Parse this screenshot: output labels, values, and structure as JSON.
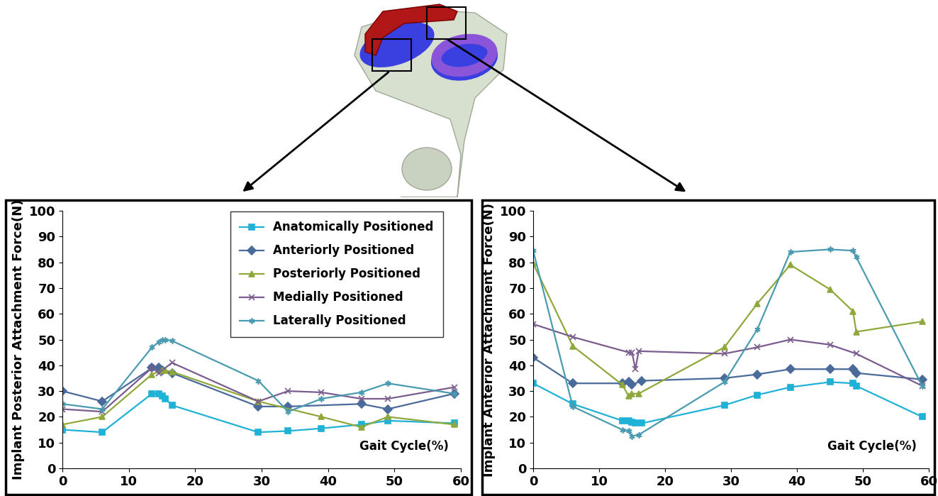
{
  "chart_data": [
    {
      "type": "line",
      "y_label": "Implant Posterior Attachment Force(N)",
      "x_label": "Gait Cycle(%)",
      "xlim": [
        0,
        60
      ],
      "xticks": [
        0,
        10,
        20,
        30,
        40,
        50,
        60
      ],
      "ylim": [
        0,
        100
      ],
      "yticks": [
        0,
        10,
        20,
        30,
        40,
        50,
        60,
        70,
        80,
        90,
        100
      ],
      "grid": false,
      "legend": "upper right",
      "series": [
        {
          "name": "Anatomically Positioned",
          "color": "#1fb1d6",
          "marker": "square",
          "line_style": "solid",
          "x": [
            0,
            6,
            13.5,
            14.5,
            15,
            15.5,
            16.5,
            29.5,
            34,
            39,
            45,
            49,
            59
          ],
          "values": [
            15,
            14,
            29,
            29,
            28,
            27,
            24.5,
            14,
            14.5,
            15.5,
            17,
            18.5,
            17.5
          ]
        },
        {
          "name": "Anteriorly Positioned",
          "color": "#4a6a9a",
          "marker": "diamond",
          "line_style": "solid",
          "x": [
            0,
            6,
            13.5,
            14.5,
            15,
            16.5,
            29.5,
            34,
            45,
            49,
            59
          ],
          "values": [
            30,
            26,
            39,
            39,
            38,
            37,
            24,
            24,
            25,
            23,
            29
          ]
        },
        {
          "name": "Posteriorly Positioned",
          "color": "#8fa83c",
          "marker": "triangle",
          "line_style": "solid",
          "x": [
            0,
            6,
            13.5,
            15,
            15.5,
            16.5,
            29.5,
            39,
            45,
            49,
            59
          ],
          "values": [
            17,
            20,
            36.5,
            38,
            38,
            37.5,
            26,
            20,
            16,
            20,
            17
          ]
        },
        {
          "name": "Medially Positioned",
          "color": "#7a5c8e",
          "marker": "x",
          "line_style": "solid",
          "x": [
            0,
            6,
            13.5,
            14.5,
            16.5,
            29.5,
            34,
            39,
            45,
            49,
            59
          ],
          "values": [
            23,
            22,
            39,
            37,
            41,
            26,
            30,
            29.5,
            27,
            27,
            31.5
          ]
        },
        {
          "name": "Laterally Positioned",
          "color": "#4a9bb0",
          "marker": "asterisk",
          "line_style": "solid",
          "x": [
            0,
            6,
            13.5,
            14.5,
            15,
            15.5,
            16.5,
            29.5,
            34,
            39,
            45,
            49,
            59
          ],
          "values": [
            25,
            23,
            47,
            49,
            50,
            50,
            49.5,
            34,
            22,
            27,
            29.5,
            33,
            29
          ]
        }
      ]
    },
    {
      "type": "line",
      "y_label": "Implant Anterior Attachment Force(N)",
      "x_label": "Gait Cycle(%)",
      "xlim": [
        0,
        60
      ],
      "xticks": [
        0,
        10,
        20,
        30,
        40,
        50,
        60
      ],
      "ylim": [
        0,
        100
      ],
      "yticks": [
        0,
        10,
        20,
        30,
        40,
        50,
        60,
        70,
        80,
        90,
        100
      ],
      "grid": false,
      "series": [
        {
          "name": "Anatomically Positioned",
          "color": "#1fb1d6",
          "marker": "square",
          "line_style": "solid",
          "x": [
            0,
            6,
            13.5,
            14.5,
            15,
            15.5,
            16.5,
            29,
            34,
            39,
            45,
            48.5,
            49,
            59
          ],
          "values": [
            33,
            25,
            18.5,
            18.5,
            18,
            17.5,
            17.5,
            24.5,
            28.5,
            31.5,
            33.5,
            33,
            32,
            20
          ]
        },
        {
          "name": "Anteriorly Positioned",
          "color": "#4a6a9a",
          "marker": "diamond",
          "line_style": "solid",
          "x": [
            0,
            6,
            13.5,
            14.5,
            15,
            16.5,
            29,
            34,
            39,
            45,
            48.5,
            49,
            59
          ],
          "values": [
            43,
            33,
            33,
            33.5,
            32.5,
            34,
            35,
            36.5,
            38.5,
            38.5,
            38.5,
            37,
            34.5
          ]
        },
        {
          "name": "Posteriorly Positioned",
          "color": "#8fa83c",
          "marker": "triangle",
          "line_style": "solid",
          "x": [
            0,
            6,
            13.5,
            14.5,
            15,
            16,
            29,
            34,
            39,
            45,
            48.5,
            49,
            59
          ],
          "values": [
            79.5,
            47.5,
            32.5,
            28,
            29,
            29,
            47,
            64,
            79,
            69.5,
            61,
            53,
            57
          ]
        },
        {
          "name": "Medially Positioned",
          "color": "#7a5c8e",
          "marker": "x",
          "line_style": "solid",
          "x": [
            0,
            6,
            14.5,
            15,
            15.5,
            16,
            29,
            34,
            39,
            45,
            49,
            59
          ],
          "values": [
            56,
            51,
            45,
            45,
            38.5,
            45.5,
            44.5,
            47,
            50,
            48,
            44.5,
            32
          ]
        },
        {
          "name": "Laterally Positioned",
          "color": "#4a9bb0",
          "marker": "asterisk",
          "line_style": "solid",
          "x": [
            0,
            6,
            13.5,
            14.5,
            15,
            16,
            29,
            34,
            39,
            45,
            48.5,
            49,
            59
          ],
          "values": [
            84.5,
            24,
            15,
            14.5,
            12.5,
            13,
            33.5,
            54,
            84,
            85,
            84.5,
            82,
            32
          ]
        }
      ]
    }
  ]
}
